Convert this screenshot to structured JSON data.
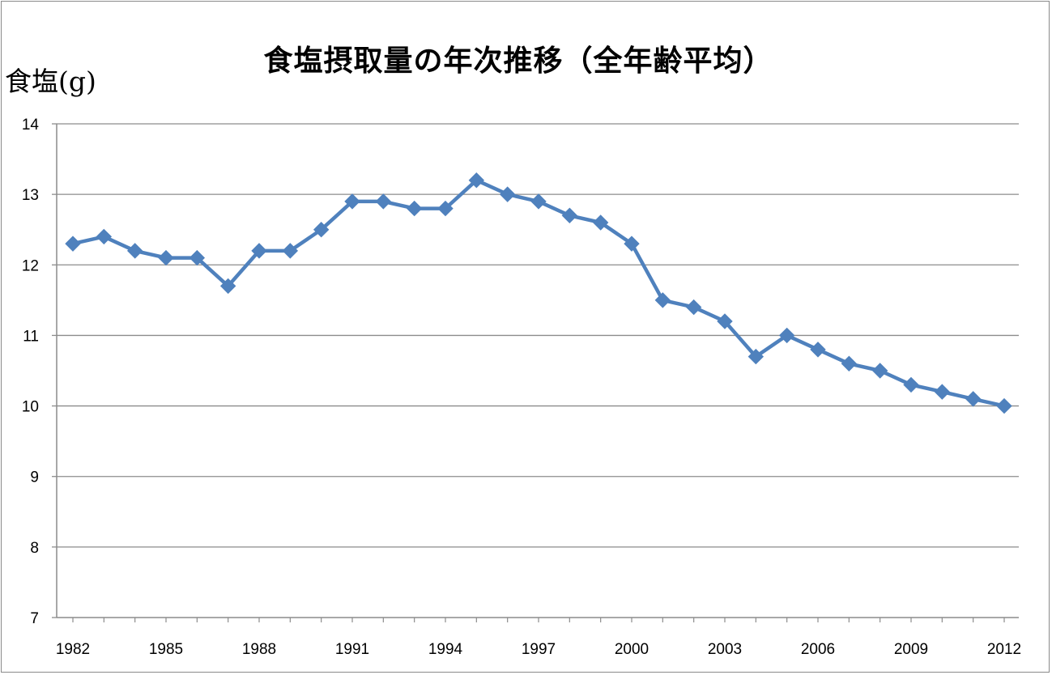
{
  "chart_data": {
    "type": "line",
    "title": "食塩摂取量の年次推移（全年齢平均）",
    "ylabel": "食塩(g)",
    "xlabel": "",
    "ylim": [
      7,
      14
    ],
    "yticks": [
      7,
      8,
      9,
      10,
      11,
      12,
      13,
      14
    ],
    "xtick_labels": [
      "1982",
      "1985",
      "1988",
      "1991",
      "1994",
      "1997",
      "2000",
      "2003",
      "2006",
      "2009",
      "2012"
    ],
    "grid": true,
    "legend": "none",
    "series": [
      {
        "color": "#4f81bd",
        "marker": "diamond",
        "x": [
          1982,
          1983,
          1984,
          1985,
          1986,
          1987,
          1988,
          1989,
          1990,
          1991,
          1992,
          1993,
          1994,
          1995,
          1996,
          1997,
          1998,
          1999,
          2000,
          2001,
          2002,
          2003,
          2004,
          2005,
          2006,
          2007,
          2008,
          2009,
          2010,
          2011,
          2012
        ],
        "values": [
          12.3,
          12.4,
          12.2,
          12.1,
          12.1,
          11.7,
          12.2,
          12.2,
          12.5,
          12.9,
          12.9,
          12.8,
          12.8,
          13.2,
          13.0,
          12.9,
          12.7,
          12.6,
          12.3,
          11.5,
          11.4,
          11.2,
          10.7,
          11.0,
          10.8,
          10.6,
          10.5,
          10.3,
          10.2,
          10.1,
          10.0
        ]
      }
    ]
  }
}
